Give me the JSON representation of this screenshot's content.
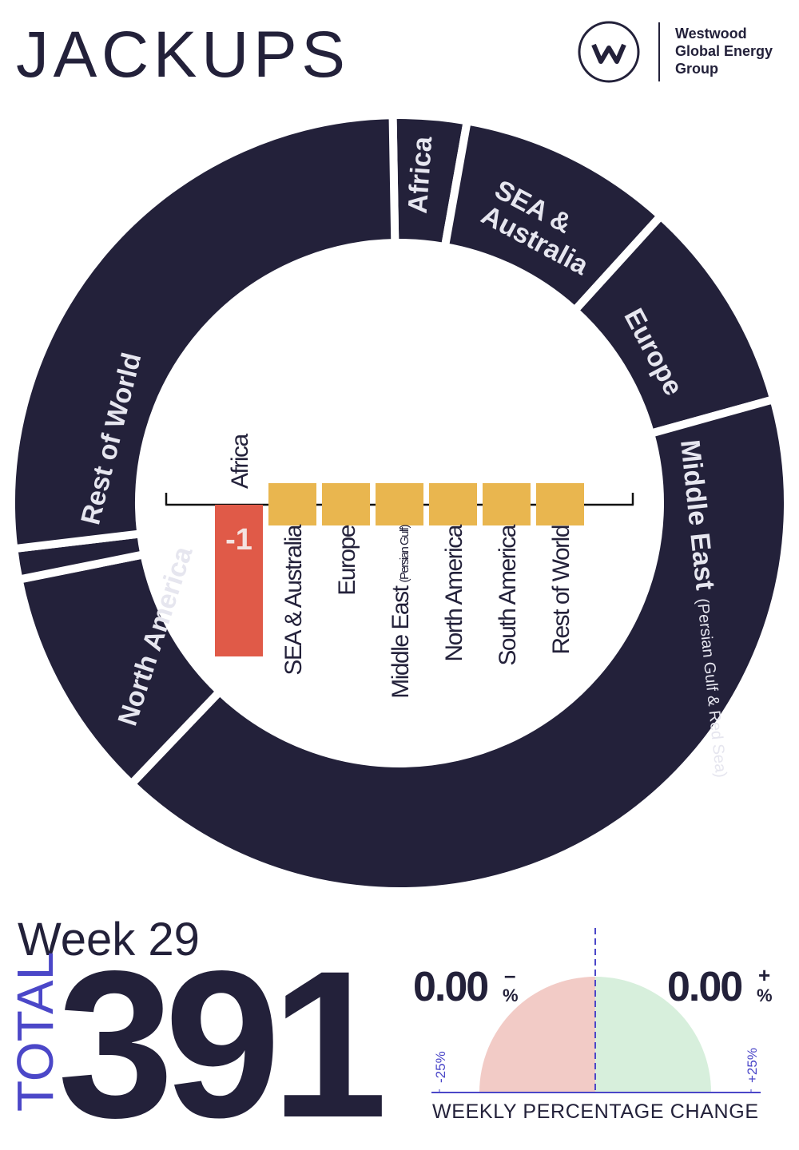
{
  "header": {
    "title": "JACKUPS",
    "logo_lines": [
      "Westwood",
      "Global Energy",
      "Group"
    ]
  },
  "chart_data": [
    {
      "type": "donut",
      "categories": [
        "Africa",
        "SEA & Australia",
        "Europe",
        "Middle East",
        "North America",
        null,
        "Rest of World"
      ],
      "category_notes": [
        null,
        null,
        null,
        "(Persian Gulf & Red Sea)",
        null,
        null,
        null
      ],
      "values": [
        12,
        35,
        35,
        162,
        38,
        5,
        104
      ],
      "color": "#23213a",
      "label_color": "#e6e6ef"
    },
    {
      "type": "bar",
      "categories": [
        "Africa",
        "SEA & Australia",
        "Europe",
        "Middle East",
        "North America",
        "South America",
        "Rest of World"
      ],
      "category_notes": [
        null,
        null,
        null,
        "(Persian Gulf)",
        null,
        null,
        null
      ],
      "values": [
        -1,
        0,
        0,
        0,
        0,
        0,
        0
      ],
      "negative_color": "#e05a48",
      "zero_color": "#e9b64f"
    },
    {
      "type": "gauge",
      "values": [
        0,
        0
      ],
      "value_labels": [
        "0.00",
        "0.00"
      ],
      "signs": [
        "–",
        "+"
      ],
      "unit": "%",
      "xlim": [
        -25,
        25
      ],
      "xticks": [
        {
          "value": -25,
          "label": "-25%"
        },
        {
          "value": 25,
          "label": "+25%"
        }
      ],
      "xlabel": "WEEKLY PERCENTAGE CHANGE",
      "colors": [
        "#f2cbc6",
        "#d7efdc"
      ],
      "axis_color": "#4b47c8"
    }
  ],
  "summary": {
    "week": "Week 29",
    "total_label": "TOTAL",
    "total": 391
  }
}
